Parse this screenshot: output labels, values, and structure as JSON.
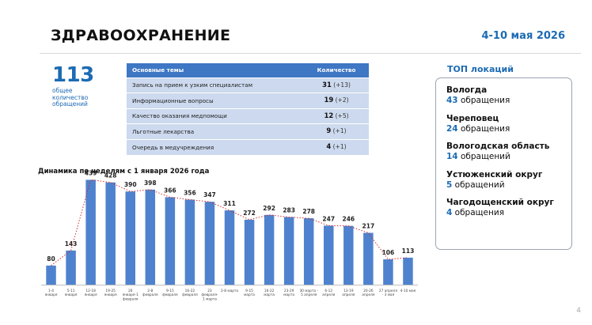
{
  "header": {
    "title": "ЗДРАВООХРАНЕНИЕ",
    "period": "4-10 мая 2026"
  },
  "summary": {
    "total": "113",
    "label": "общее количество обращений"
  },
  "topics": {
    "col_topic": "Основные темы",
    "col_count": "Количество",
    "rows": [
      {
        "topic": "Запись на прием к узким специалистам",
        "count": "31",
        "delta": "(+13)"
      },
      {
        "topic": "Информационные вопросы",
        "count": "19",
        "delta": "(+2)"
      },
      {
        "topic": "Качество оказания медпомощи",
        "count": "12",
        "delta": "(+5)"
      },
      {
        "topic": "Льготные лекарства",
        "count": "9",
        "delta": "(+1)"
      },
      {
        "topic": "Очередь в медучреждения",
        "count": "4",
        "delta": "(+1)"
      }
    ]
  },
  "locations": {
    "title": "ТОП локаций",
    "items": [
      {
        "name": "Вологда",
        "count": "43",
        "suffix": "обращения"
      },
      {
        "name": "Череповец",
        "count": "24",
        "suffix": "обращения"
      },
      {
        "name": "Вологодская область",
        "count": "14",
        "suffix": "обращений"
      },
      {
        "name": "Устюженский округ",
        "count": "5",
        "suffix": "обращений"
      },
      {
        "name": "Чагодощенский округ",
        "count": "4",
        "suffix": "обращения"
      }
    ]
  },
  "chart_data": {
    "type": "bar",
    "title": "Динамика по неделям с 1 января 2026 года",
    "categories": [
      [
        "1-4",
        "января"
      ],
      [
        "5-11",
        "января"
      ],
      [
        "12-18",
        "января"
      ],
      [
        "19-25",
        "января"
      ],
      [
        "26",
        "января-1",
        "февраля"
      ],
      [
        "2-8",
        "февраля"
      ],
      [
        "9-15",
        "февраля"
      ],
      [
        "16-22",
        "февраля"
      ],
      [
        "23",
        "февраля-",
        "1 марта"
      ],
      [
        "2-8 марта"
      ],
      [
        "9-15",
        "марта"
      ],
      [
        "16-22",
        "марта"
      ],
      [
        "23-29",
        "марта"
      ],
      [
        "30 марта -",
        "5 апреля"
      ],
      [
        "6-12",
        "апреля"
      ],
      [
        "13-19",
        "апреля"
      ],
      [
        "20-26",
        "апреля"
      ],
      [
        "27 апреля",
        "- 3 мая"
      ],
      [
        "4-10 мая"
      ]
    ],
    "values": [
      80,
      143,
      439,
      428,
      390,
      398,
      366,
      356,
      347,
      311,
      272,
      292,
      283,
      278,
      247,
      246,
      217,
      106,
      113
    ],
    "ylim": [
      0,
      480
    ],
    "trendline": "dotted",
    "colors": {
      "bar": "#4f82ce",
      "trend": "#d0312d"
    }
  },
  "page_number": "4"
}
